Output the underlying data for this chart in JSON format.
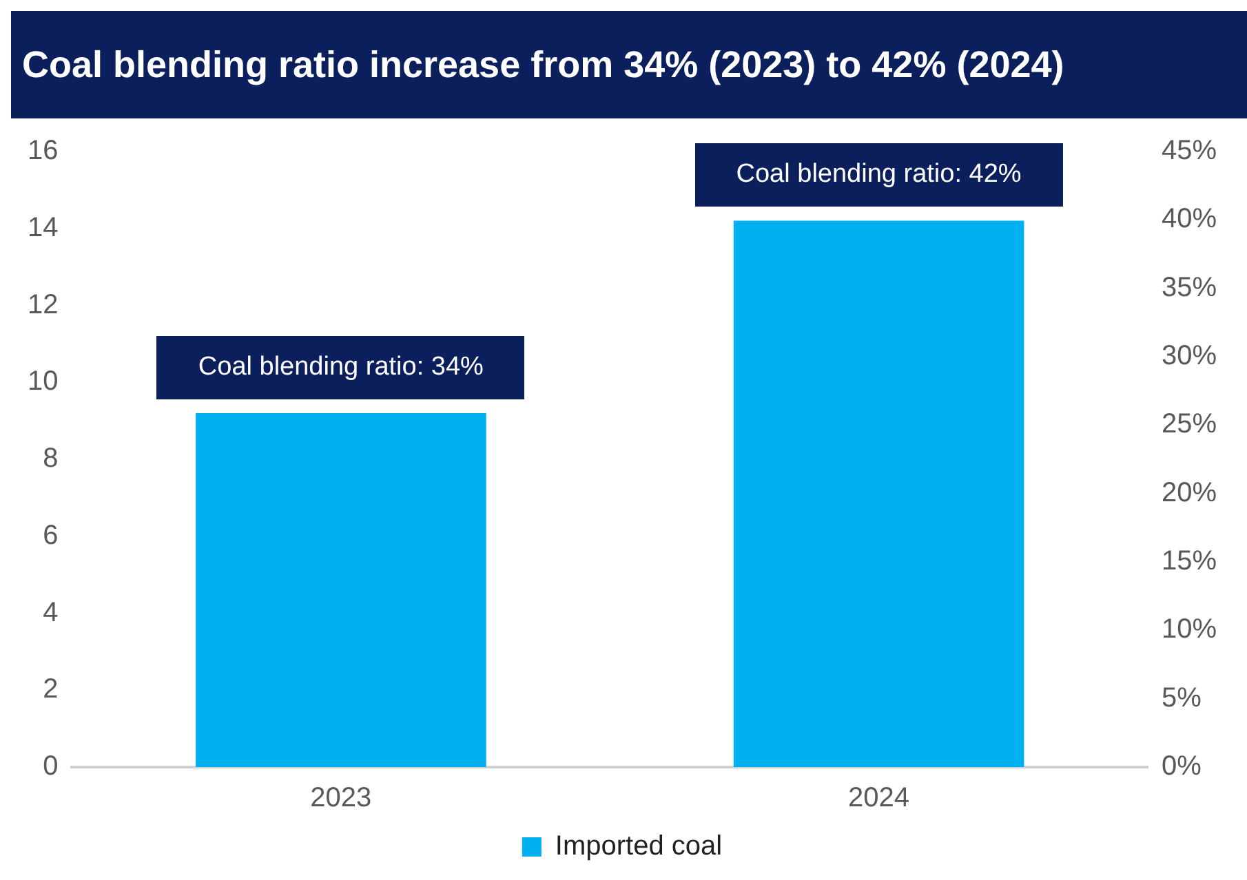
{
  "chart_data": {
    "type": "bar",
    "title": "Coal blending ratio increase from 34% (2023) to 42% (2024)",
    "categories": [
      "2023",
      "2024"
    ],
    "series": [
      {
        "name": "Imported coal",
        "color": "#00b0f0",
        "values": [
          9.2,
          14.2
        ]
      }
    ],
    "ylim": [
      0,
      16
    ],
    "yticks": [
      0,
      2,
      4,
      6,
      8,
      10,
      12,
      14,
      16
    ],
    "y2lim": [
      0,
      45
    ],
    "y2ticks": [
      {
        "value": 0,
        "label": "0%"
      },
      {
        "value": 5,
        "label": "5%"
      },
      {
        "value": 10,
        "label": "10%"
      },
      {
        "value": 15,
        "label": "15%"
      },
      {
        "value": 20,
        "label": "20%"
      },
      {
        "value": 25,
        "label": "25%"
      },
      {
        "value": 30,
        "label": "30%"
      },
      {
        "value": 35,
        "label": "35%"
      },
      {
        "value": 40,
        "label": "40%"
      },
      {
        "value": 45,
        "label": "45%"
      }
    ],
    "annotations": [
      "Coal blending ratio: 34%",
      "Coal blending ratio: 42%"
    ],
    "grid": false,
    "legend": "bottom"
  }
}
